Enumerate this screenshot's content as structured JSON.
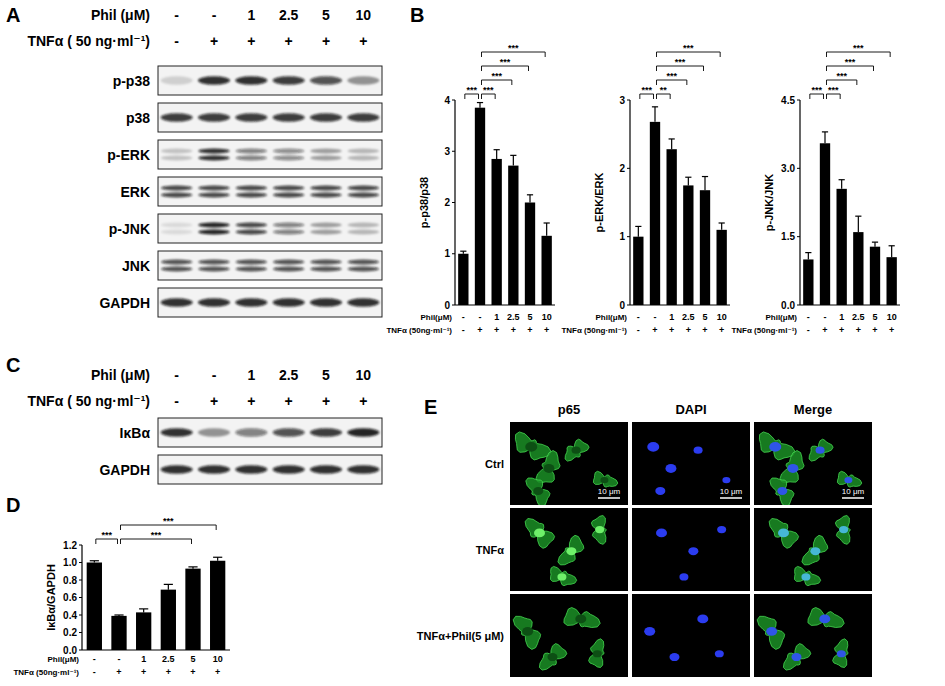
{
  "panel_labels": [
    "A",
    "B",
    "C",
    "D",
    "E"
  ],
  "blots": [
    {
      "header": [
        {
          "label": "Phil (μM)",
          "values": [
            "-",
            "-",
            "1",
            "2.5",
            "5",
            "10"
          ]
        },
        {
          "label": "TNFα ( 50 ng·ml⁻¹)",
          "values": [
            "-",
            "+",
            "+",
            "+",
            "+",
            "+"
          ]
        }
      ],
      "rows": [
        {
          "label": "p-p38",
          "doublet": false,
          "intensity": [
            0.15,
            0.85,
            0.85,
            0.8,
            0.7,
            0.4
          ]
        },
        {
          "label": "p38",
          "doublet": false,
          "intensity": [
            0.8,
            0.8,
            0.8,
            0.8,
            0.8,
            0.8
          ]
        },
        {
          "label": "p-ERK",
          "doublet": true,
          "intensity": [
            0.2,
            0.85,
            0.5,
            0.45,
            0.35,
            0.25
          ]
        },
        {
          "label": "ERK",
          "doublet": true,
          "intensity": [
            0.75,
            0.75,
            0.75,
            0.75,
            0.75,
            0.75
          ]
        },
        {
          "label": "p-JNK",
          "doublet": true,
          "intensity": [
            0.1,
            0.9,
            0.75,
            0.5,
            0.35,
            0.25
          ]
        },
        {
          "label": "JNK",
          "doublet": true,
          "intensity": [
            0.7,
            0.7,
            0.7,
            0.7,
            0.7,
            0.7
          ]
        },
        {
          "label": "GAPDH",
          "doublet": false,
          "intensity": [
            0.85,
            0.85,
            0.85,
            0.85,
            0.85,
            0.85
          ]
        }
      ]
    },
    {
      "header": [
        {
          "label": "Phil (μM)",
          "values": [
            "-",
            "-",
            "1",
            "2.5",
            "5",
            "10"
          ]
        },
        {
          "label": "TNFα ( 50 ng·ml⁻¹)",
          "values": [
            "-",
            "+",
            "+",
            "+",
            "+",
            "+"
          ]
        }
      ],
      "rows": [
        {
          "label": "IκBα",
          "doublet": false,
          "intensity": [
            0.85,
            0.4,
            0.5,
            0.7,
            0.8,
            0.9
          ]
        },
        {
          "label": "GAPDH",
          "doublet": false,
          "intensity": [
            0.85,
            0.85,
            0.85,
            0.85,
            0.85,
            0.85
          ]
        }
      ]
    }
  ],
  "chart_data": [
    {
      "type": "bar",
      "y_label": "p-p38/p38",
      "x_label": "Phil(μM)",
      "categories": [
        "-",
        "-",
        "1",
        "2.5",
        "5",
        "10"
      ],
      "x_rows": [
        {
          "label": "TNFα (50ng·ml⁻¹)",
          "values": [
            "-",
            "+",
            "+",
            "+",
            "+",
            "+"
          ]
        }
      ],
      "values": [
        1.0,
        3.85,
        2.85,
        2.72,
        2.0,
        1.35
      ],
      "errors": [
        0.05,
        0.1,
        0.18,
        0.2,
        0.15,
        0.25
      ],
      "ylim": [
        0,
        4
      ],
      "yticks": [
        0,
        1,
        2,
        3,
        4
      ],
      "color": "#000000",
      "comparisons": [
        {
          "from": 0,
          "to": 1,
          "label": "***"
        },
        {
          "from": 1,
          "to": 2,
          "label": "***"
        },
        {
          "from": 1,
          "to": 3,
          "label": "***"
        },
        {
          "from": 1,
          "to": 4,
          "label": "***"
        },
        {
          "from": 1,
          "to": 5,
          "label": "***"
        }
      ]
    },
    {
      "type": "bar",
      "y_label": "p-ERK/ERK",
      "x_label": "Phil(μM)",
      "categories": [
        "-",
        "-",
        "1",
        "2.5",
        "5",
        "10"
      ],
      "x_rows": [
        {
          "label": "TNFα (50ng·ml⁻¹)",
          "values": [
            "-",
            "+",
            "+",
            "+",
            "+",
            "+"
          ]
        }
      ],
      "values": [
        1.0,
        2.68,
        2.28,
        1.75,
        1.68,
        1.1
      ],
      "errors": [
        0.15,
        0.22,
        0.15,
        0.12,
        0.2,
        0.1
      ],
      "ylim": [
        0,
        3
      ],
      "yticks": [
        0,
        1,
        2,
        3
      ],
      "color": "#000000",
      "comparisons": [
        {
          "from": 0,
          "to": 1,
          "label": "***"
        },
        {
          "from": 1,
          "to": 2,
          "label": "**"
        },
        {
          "from": 1,
          "to": 3,
          "label": "***"
        },
        {
          "from": 1,
          "to": 4,
          "label": "***"
        },
        {
          "from": 1,
          "to": 5,
          "label": "***"
        }
      ]
    },
    {
      "type": "bar",
      "y_label": "p-JNK/JNK",
      "x_label": "Phil(μM)",
      "categories": [
        "-",
        "-",
        "1",
        "2.5",
        "5",
        "10"
      ],
      "x_rows": [
        {
          "label": "TNFα (50ng·ml⁻¹)",
          "values": [
            "-",
            "+",
            "+",
            "+",
            "+",
            "+"
          ]
        }
      ],
      "values": [
        1.0,
        3.55,
        2.55,
        1.6,
        1.28,
        1.05
      ],
      "errors": [
        0.15,
        0.25,
        0.2,
        0.35,
        0.1,
        0.25
      ],
      "ylim": [
        0,
        4.5
      ],
      "yticks": [
        {
          "value": 0,
          "label": "0.0"
        },
        1.5,
        {
          "value": 3,
          "label": "3.0"
        },
        4.5
      ],
      "color": "#000000",
      "comparisons": [
        {
          "from": 0,
          "to": 1,
          "label": "***"
        },
        {
          "from": 1,
          "to": 2,
          "label": "***"
        },
        {
          "from": 1,
          "to": 3,
          "label": "***"
        },
        {
          "from": 1,
          "to": 4,
          "label": "***"
        },
        {
          "from": 1,
          "to": 5,
          "label": "***"
        }
      ]
    },
    {
      "type": "bar",
      "y_label": "IκBα/GAPDH",
      "x_label": "Phil(μM)",
      "categories": [
        "-",
        "-",
        "1",
        "2.5",
        "5",
        "10"
      ],
      "x_rows": [
        {
          "label": "TNFα (50ng·ml⁻¹)",
          "values": [
            "-",
            "+",
            "+",
            "+",
            "+",
            "+"
          ]
        }
      ],
      "values": [
        1.0,
        0.39,
        0.43,
        0.69,
        0.93,
        1.02
      ],
      "errors": [
        0.02,
        0.01,
        0.04,
        0.06,
        0.02,
        0.04
      ],
      "ylim": [
        0,
        1.2
      ],
      "yticks": [
        {
          "value": 0,
          "label": "0.0"
        },
        0.2,
        0.4,
        0.6,
        0.8,
        {
          "value": 1,
          "label": "1.0"
        },
        1.2
      ],
      "color": "#000000",
      "comparisons": [
        {
          "from": 0,
          "to": 1,
          "label": "***"
        },
        {
          "from": 1,
          "to": 4,
          "label": "***"
        },
        {
          "from": 1,
          "to": 5,
          "label": "***"
        }
      ]
    }
  ],
  "microscopy": {
    "columns": [
      "p65",
      "DAPI",
      "Merge"
    ],
    "rows": [
      {
        "label": "Ctrl",
        "nuclear_p65": false,
        "scale_bar": "10 μm"
      },
      {
        "label": "TNFα",
        "nuclear_p65": true
      },
      {
        "label": "TNFα+Phil(5 μM)",
        "nuclear_p65": false
      }
    ]
  }
}
